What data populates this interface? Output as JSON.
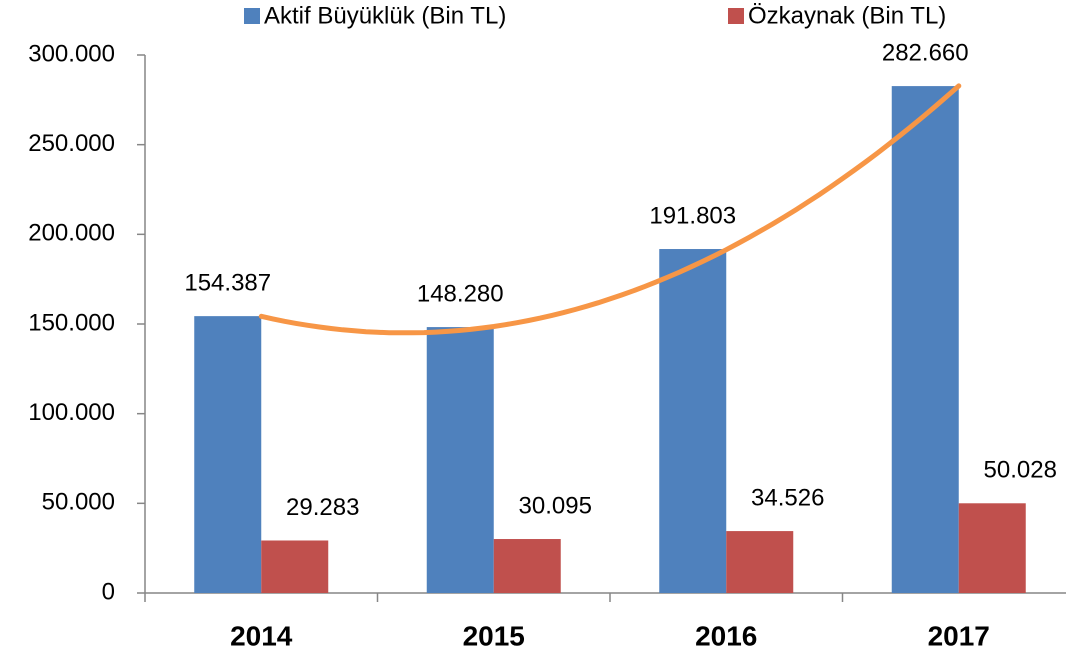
{
  "chart_data": {
    "type": "bar",
    "categories": [
      "2014",
      "2015",
      "2016",
      "2017"
    ],
    "series": [
      {
        "name": "Aktif Büyüklük (Bin TL)",
        "color": "#4f81bd",
        "values": [
          154387,
          148280,
          191803,
          282660
        ],
        "value_labels": [
          "154.387",
          "148.280",
          "191.803",
          "282.660"
        ]
      },
      {
        "name": "Özkaynak (Bin TL)",
        "color": "#c0504d",
        "values": [
          29283,
          30095,
          34526,
          50028
        ],
        "value_labels": [
          "29.283",
          "30.095",
          "34.526",
          "50.028"
        ]
      }
    ],
    "ylim": [
      0,
      300000
    ],
    "yticks": [
      0,
      {
        "value": 50000,
        "label": "50.000"
      },
      {
        "value": 100000,
        "label": "100.000"
      },
      {
        "value": 150000,
        "label": "150.000"
      },
      {
        "value": 200000,
        "label": "200.000"
      },
      {
        "value": 250000,
        "label": "250.000"
      },
      {
        "value": 300000,
        "label": "300.000"
      }
    ],
    "legend": "top",
    "trendline": {
      "series": 0,
      "type": "polynomial",
      "order": 2,
      "color": "#f79646"
    }
  }
}
